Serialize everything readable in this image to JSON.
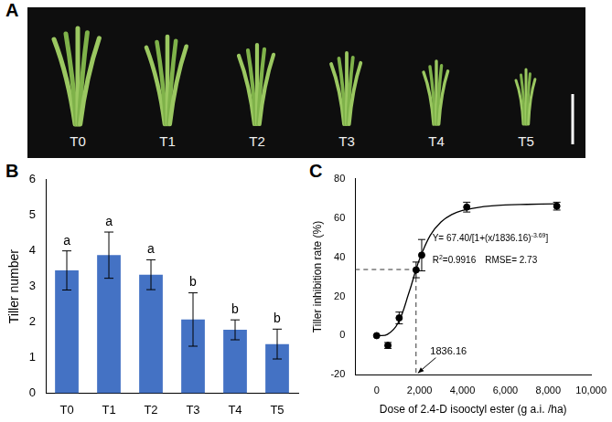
{
  "panel_labels": [
    "A",
    "B",
    "C"
  ],
  "photo": {
    "labels": [
      "T0",
      "T1",
      "T2",
      "T3",
      "T4",
      "T5"
    ]
  },
  "chart_data": [
    {
      "type": "bar",
      "categories": [
        "T0",
        "T1",
        "T2",
        "T3",
        "T4",
        "T5"
      ],
      "values": [
        3.45,
        3.88,
        3.33,
        2.07,
        1.78,
        1.38
      ],
      "errors": [
        0.55,
        0.65,
        0.42,
        0.75,
        0.28,
        0.42
      ],
      "significance": [
        "a",
        "a",
        "a",
        "b",
        "b",
        "b"
      ],
      "color": "#4472c4",
      "y_label": "Tiller number",
      "ylim": [
        0,
        6
      ],
      "yticks": [
        0,
        1,
        2,
        3,
        4,
        5,
        6
      ],
      "grid": false
    },
    {
      "type": "scatter",
      "x_label": "Dose of 2.4-D isooctyl ester (g a.i. /ha)",
      "y_label": "Tiller inhibition rate (%)",
      "points": {
        "x": [
          0,
          525,
          1050,
          1840,
          2100,
          4200,
          8400
        ],
        "values": [
          0,
          -5,
          9,
          33.5,
          41,
          65.5,
          66
        ],
        "errors": [
          0,
          1.5,
          3,
          4,
          8,
          2.5,
          2
        ],
        "color": "#000000",
        "marker": "circle"
      },
      "curve": {
        "x": [
          0,
          500,
          1000,
          1500,
          1836.16,
          2000,
          2500,
          3000,
          3500,
          4000,
          5000,
          6000,
          7000,
          8400
        ],
        "values": [
          0,
          0.6,
          6.5,
          21.7,
          33.7,
          39,
          51.1,
          57.9,
          61.7,
          63.8,
          65.8,
          66.6,
          66.9,
          67.2
        ],
        "color": "#000000",
        "line_style": "solid"
      },
      "reference": {
        "x": 1836.16,
        "y": 33.7,
        "label": "1836.16",
        "line_style": "dashed"
      },
      "equation": {
        "base": "Y= 67.40/[1+(x/1836.16)",
        "sup": "-3.69",
        "tail": "]"
      },
      "r2": {
        "base": "R",
        "sup": "2",
        "tail": "=0.9916"
      },
      "rmse": "RMSE= 2.73",
      "xlim": [
        -1000,
        10000
      ],
      "xticks": [
        0,
        2000,
        4000,
        6000,
        8000,
        10000
      ],
      "ylim": [
        -20,
        80
      ],
      "yticks": [
        -20,
        0,
        20,
        40,
        60,
        80
      ],
      "grid": false
    }
  ]
}
